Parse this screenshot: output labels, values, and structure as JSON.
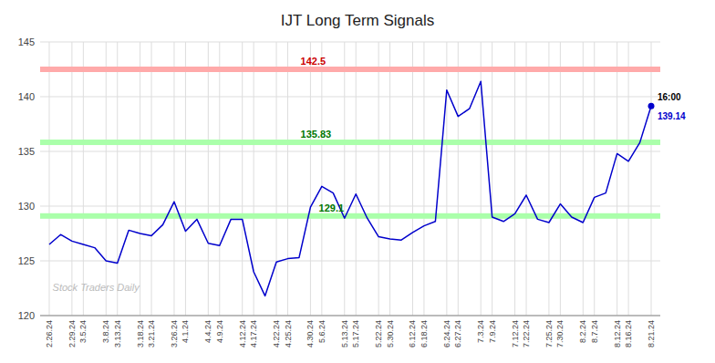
{
  "chart_data": {
    "type": "line",
    "title": "IJT Long Term Signals",
    "color": "#0000cc",
    "categories": [
      "2.26.24",
      null,
      "2.29.24",
      "3.5.24",
      null,
      "3.8.24",
      "3.13.24",
      null,
      "3.18.24",
      "3.21.24",
      null,
      "3.26.24",
      "4.1.24",
      null,
      "4.4.24",
      "4.9.24",
      null,
      "4.12.24",
      "4.17.24",
      null,
      "4.22.24",
      "4.25.24",
      null,
      "4.30.24",
      "5.6.24",
      null,
      "5.13.24",
      "5.17.24",
      null,
      "5.22.24",
      "5.30.24",
      null,
      "6.12.24",
      "6.18.24",
      null,
      "6.24.24",
      "6.27.24",
      null,
      "7.3.24",
      "7.9.24",
      null,
      "7.12.24",
      "7.22.24",
      null,
      "7.25.24",
      "7.30.24",
      null,
      "8.2.24",
      "8.7.24",
      null,
      "8.12.24",
      "8.16.24",
      null,
      "8.21.24"
    ],
    "values": [
      126.5,
      127.4,
      126.8,
      126.5,
      126.2,
      125.0,
      124.8,
      127.8,
      127.5,
      127.3,
      128.3,
      130.4,
      127.7,
      128.8,
      126.6,
      126.4,
      128.8,
      128.8,
      124.0,
      121.8,
      124.9,
      125.2,
      125.3,
      129.9,
      131.8,
      131.2,
      128.9,
      131.1,
      128.9,
      127.2,
      127.0,
      126.9,
      127.6,
      128.2,
      128.6,
      140.6,
      138.2,
      138.9,
      141.4,
      129.0,
      128.6,
      129.3,
      131.0,
      128.8,
      128.5,
      130.2,
      129.0,
      128.5,
      130.8,
      131.2,
      134.8,
      134.1,
      135.8,
      139.14
    ],
    "ylim": [
      120,
      145
    ],
    "yticks": [
      120,
      125,
      130,
      135,
      140,
      145
    ],
    "grid": true,
    "annotations": [
      {
        "y": 142.5,
        "text": "142.5",
        "color": "#cc0000"
      },
      {
        "y": 135.83,
        "text": "135.83",
        "color": "#007700"
      },
      {
        "y": 129.1,
        "text": "129.1",
        "color": "#007700"
      }
    ],
    "end_label": "16:00",
    "watermark": "Stock Traders Daily"
  }
}
